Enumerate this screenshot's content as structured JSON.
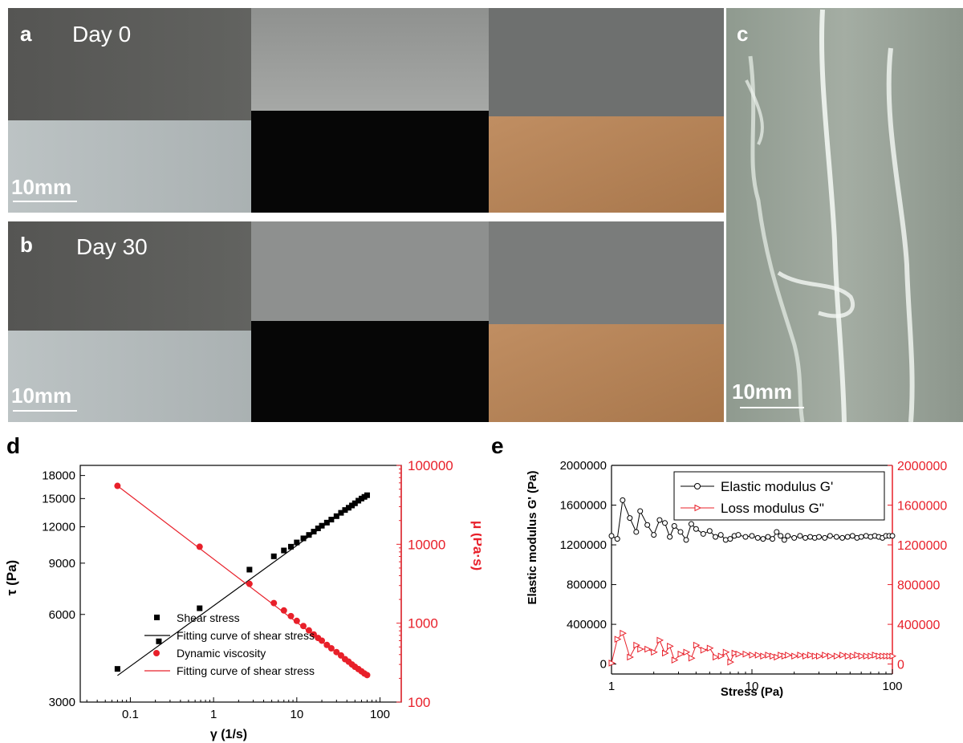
{
  "panels": {
    "a": {
      "letter": "a",
      "label": "Day 0",
      "scale": "10mm"
    },
    "b": {
      "letter": "b",
      "label": "Day 30",
      "scale": "10mm"
    },
    "c": {
      "letter": "c",
      "scale": "10mm"
    },
    "d": {
      "letter": "d"
    },
    "e": {
      "letter": "e"
    }
  },
  "colors": {
    "black_series": "#000000",
    "red_series": "#e8202a",
    "gray_top": "#5a5a58",
    "light_base": "#b9c0c1",
    "black_base": "#060606",
    "copper_base": "#b9865a"
  },
  "chart_data": [
    {
      "panel": "d",
      "type": "scatter",
      "xlabel": "γ (1/s)",
      "ylabel_left": "τ (Pa)",
      "ylabel_right": "μ (Pa·s)",
      "x_scale": "log",
      "y_left_scale": "log",
      "y_right_scale": "log",
      "x_ticks": [
        "0.1",
        "1",
        "10",
        "100"
      ],
      "y_left_ticks": [
        "3000",
        "6000",
        "9000",
        "12000",
        "15000",
        "18000"
      ],
      "y_right_ticks": [
        "100",
        "1000",
        "10000",
        "100000"
      ],
      "xlim": [
        0.025,
        180
      ],
      "ylim_left": [
        3000,
        19500
      ],
      "ylim_right": [
        100,
        100000
      ],
      "legend": [
        "Shear stress",
        "Fitting curve of shear stress",
        "Dynamic viscosity",
        "Fitting curve of shear stress"
      ],
      "series": [
        {
          "name": "Shear stress",
          "axis": "left",
          "marker": "square",
          "x": [
            0.07,
            0.22,
            0.68,
            2.7,
            5.3,
            7.0,
            8.5,
            10,
            12,
            14,
            16,
            18,
            20,
            23,
            26,
            30,
            34,
            38,
            42,
            46,
            50,
            55,
            60,
            65,
            70
          ],
          "y": [
            3900,
            4850,
            6300,
            8550,
            9500,
            9950,
            10250,
            10600,
            10950,
            11250,
            11550,
            11850,
            12100,
            12400,
            12700,
            13050,
            13400,
            13700,
            13950,
            14200,
            14450,
            14750,
            15000,
            15200,
            15400
          ]
        },
        {
          "name": "Fitting curve of shear stress",
          "axis": "left",
          "marker": "line",
          "x": [
            0.07,
            70
          ],
          "y": [
            3700,
            15500
          ]
        },
        {
          "name": "Dynamic viscosity",
          "axis": "right",
          "marker": "circle",
          "x": [
            0.07,
            0.68,
            2.7,
            5.3,
            7.0,
            8.5,
            10,
            12,
            14,
            16,
            18,
            20,
            23,
            26,
            30,
            34,
            38,
            42,
            46,
            50,
            55,
            60,
            65,
            70
          ],
          "y": [
            55000,
            9300,
            3150,
            1800,
            1450,
            1230,
            1070,
            920,
            810,
            720,
            650,
            600,
            530,
            480,
            430,
            390,
            350,
            325,
            300,
            280,
            262,
            245,
            230,
            220
          ]
        },
        {
          "name": "Fitting curve of shear stress",
          "axis": "right",
          "marker": "line",
          "x": [
            0.07,
            70
          ],
          "y": [
            55000,
            215
          ]
        }
      ]
    },
    {
      "panel": "e",
      "type": "line",
      "xlabel": "Stress (Pa)",
      "ylabel_left": "Elastic modulus G' (Pa)",
      "x_scale": "log",
      "x_ticks": [
        "1",
        "10",
        "100"
      ],
      "y_left_ticks": [
        "0",
        "400000",
        "800000",
        "1200000",
        "1600000",
        "2000000"
      ],
      "y_right_ticks": [
        "0",
        "400000",
        "800000",
        "1200000",
        "1600000",
        "2000000"
      ],
      "xlim": [
        1,
        100
      ],
      "ylim": [
        -100000,
        2000000
      ],
      "legend": [
        "Elastic modulus G'",
        "Loss modulus G\""
      ],
      "series": [
        {
          "name": "Elastic modulus G'",
          "marker": "half-circle",
          "x": [
            1.0,
            1.1,
            1.2,
            1.35,
            1.5,
            1.6,
            1.8,
            2.0,
            2.2,
            2.4,
            2.6,
            2.8,
            3.1,
            3.4,
            3.7,
            4.0,
            4.5,
            5.0,
            5.5,
            6.0,
            6.5,
            7.0,
            7.5,
            8.0,
            9.0,
            10,
            11,
            12,
            13,
            14,
            15,
            16,
            17,
            18,
            20,
            22,
            24,
            26,
            28,
            30,
            33,
            36,
            40,
            44,
            48,
            52,
            56,
            60,
            65,
            70,
            75,
            80,
            85,
            90,
            95,
            100
          ],
          "y": [
            1290000,
            1260000,
            1650000,
            1470000,
            1330000,
            1540000,
            1400000,
            1300000,
            1450000,
            1420000,
            1280000,
            1390000,
            1330000,
            1250000,
            1410000,
            1360000,
            1310000,
            1340000,
            1280000,
            1300000,
            1250000,
            1260000,
            1290000,
            1300000,
            1280000,
            1290000,
            1270000,
            1260000,
            1280000,
            1260000,
            1330000,
            1290000,
            1250000,
            1290000,
            1270000,
            1290000,
            1270000,
            1280000,
            1270000,
            1280000,
            1270000,
            1290000,
            1280000,
            1270000,
            1280000,
            1290000,
            1270000,
            1280000,
            1290000,
            1280000,
            1290000,
            1280000,
            1270000,
            1290000,
            1290000,
            1290000
          ]
        },
        {
          "name": "Loss modulus G\"",
          "marker": "triangle",
          "x": [
            1.0,
            1.1,
            1.2,
            1.35,
            1.5,
            1.6,
            1.8,
            2.0,
            2.2,
            2.4,
            2.6,
            2.8,
            3.1,
            3.4,
            3.7,
            4.0,
            4.5,
            5.0,
            5.5,
            6.0,
            6.5,
            7.0,
            7.5,
            8.0,
            9.0,
            10,
            11,
            12,
            13,
            14,
            15,
            16,
            17,
            18,
            20,
            22,
            24,
            26,
            28,
            30,
            33,
            36,
            40,
            44,
            48,
            52,
            56,
            60,
            65,
            70,
            75,
            80,
            85,
            90,
            95,
            100
          ],
          "y": [
            10000,
            250000,
            310000,
            70000,
            190000,
            150000,
            150000,
            120000,
            240000,
            110000,
            180000,
            40000,
            100000,
            120000,
            60000,
            190000,
            140000,
            160000,
            70000,
            80000,
            120000,
            20000,
            110000,
            100000,
            100000,
            90000,
            90000,
            80000,
            90000,
            80000,
            70000,
            90000,
            80000,
            90000,
            80000,
            90000,
            80000,
            90000,
            80000,
            80000,
            90000,
            80000,
            80000,
            90000,
            80000,
            80000,
            90000,
            80000,
            80000,
            80000,
            90000,
            80000,
            80000,
            80000,
            80000,
            80000
          ]
        }
      ]
    }
  ]
}
